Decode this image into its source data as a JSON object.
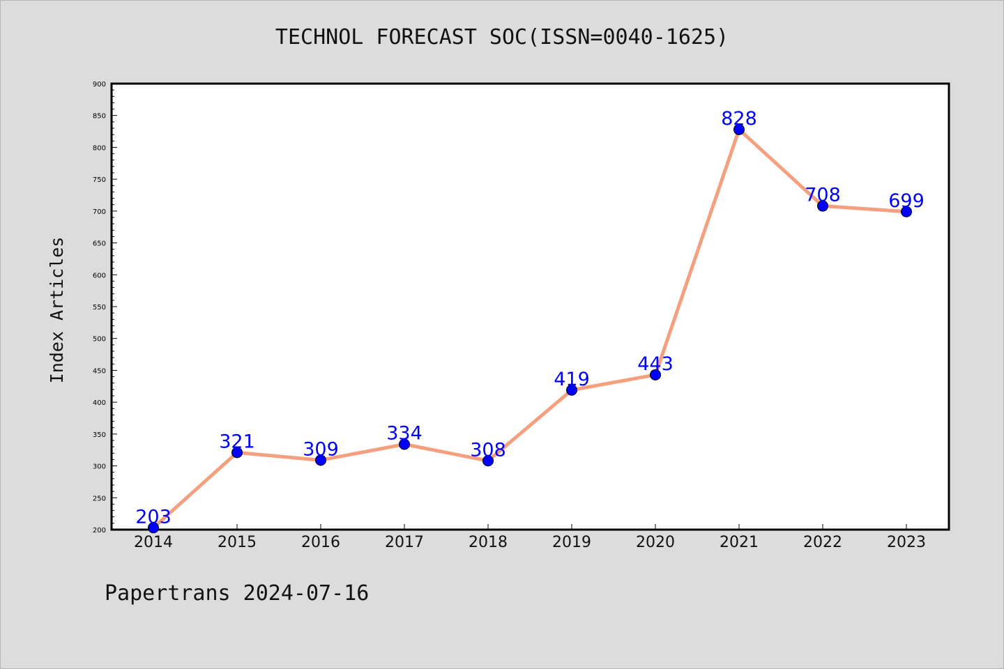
{
  "chart_data": {
    "type": "line",
    "title": "TECHNOL FORECAST SOC(ISSN=0040-1625)",
    "xlabel": "",
    "ylabel": "Index Articles",
    "categories": [
      "2014",
      "2015",
      "2016",
      "2017",
      "2018",
      "2019",
      "2020",
      "2021",
      "2022",
      "2023"
    ],
    "values": [
      203,
      321,
      309,
      334,
      308,
      419,
      443,
      828,
      708,
      699
    ],
    "ylim": [
      200,
      900
    ],
    "yticks": [
      "200",
      "250",
      "300",
      "350",
      "400",
      "450",
      "500",
      "550",
      "600",
      "650",
      "700",
      "750",
      "800",
      "850",
      "900"
    ],
    "grid": false,
    "legend": "none",
    "colors": {
      "line": "#f4a07e",
      "marker": "#0000ff",
      "label": "#0000ff"
    }
  },
  "footer": {
    "watermark": "Papertrans 2024-07-16"
  }
}
